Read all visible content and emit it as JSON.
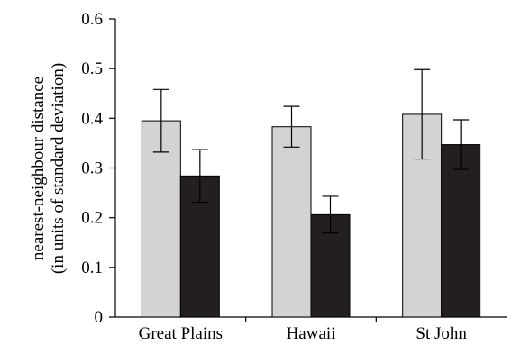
{
  "chart_data": {
    "type": "bar",
    "categories": [
      "Great Plains",
      "Hawaii",
      "St John"
    ],
    "series": [
      {
        "values": [
          0.395,
          0.383,
          0.408
        ],
        "error": [
          0.063,
          0.041,
          0.09
        ],
        "color": "#d3d3d3"
      },
      {
        "values": [
          0.284,
          0.206,
          0.347
        ],
        "error": [
          0.053,
          0.037,
          0.05
        ],
        "color": "#231f20"
      }
    ],
    "ylabel_line1": "nearest-neighbour distance",
    "ylabel_line2": "(in units of standard deviation)",
    "ylim": [
      0,
      0.6
    ],
    "yticks": [
      "0",
      "0.1",
      "0.2",
      "0.3",
      "0.4",
      "0.5",
      "0.6"
    ],
    "grid": false
  }
}
